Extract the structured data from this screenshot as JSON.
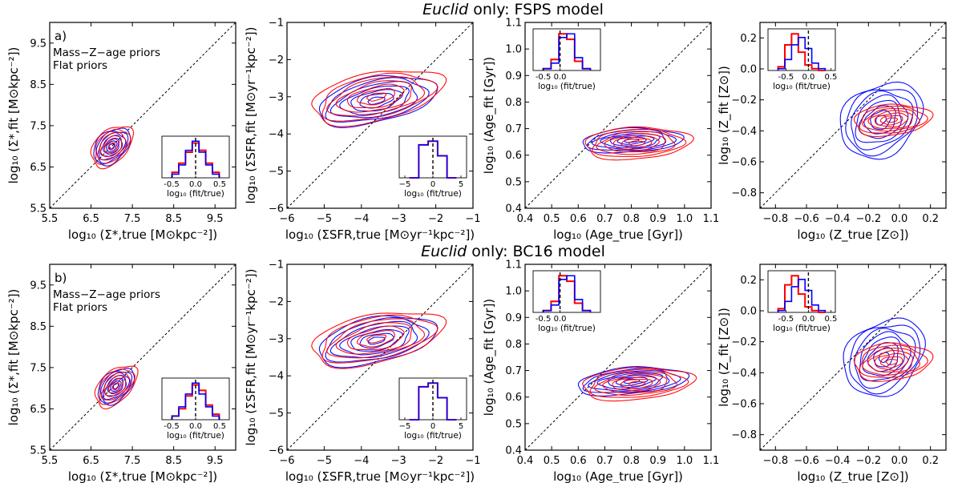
{
  "figure": {
    "row_titles": [
      {
        "italic": "Euclid",
        "rest": " only: FSPS model"
      },
      {
        "italic": "Euclid",
        "rest": " only: BC16 model"
      }
    ],
    "panel_tags": [
      "a)",
      "b)"
    ],
    "legend": [
      {
        "label": "Mass−Z−age priors",
        "color": "#0000ff"
      },
      {
        "label": "Flat priors",
        "color": "#ff0000"
      }
    ],
    "colors": {
      "mass_z_age": "#0000ff",
      "flat": "#ff0000"
    },
    "inset_xlabel": "log₁₀ (fit/true)"
  },
  "chart_data": [
    {
      "type": "contour",
      "row": 0,
      "col": 0,
      "xlabel": "log₁₀ (Σ*,true [M⊙kpc⁻²])",
      "ylabel": "log₁₀ (Σ*,fit [M⊙kpc⁻²])",
      "xlim": [
        5.5,
        10.0
      ],
      "ylim": [
        5.5,
        10.0
      ],
      "xticks": [
        "5.5",
        "6.5",
        "7.5",
        "8.5",
        "9.5"
      ],
      "xtick_values": [
        5.5,
        6.5,
        7.5,
        8.5,
        9.5
      ],
      "yticks": [
        "5.5",
        "6.5",
        "7.5",
        "8.5",
        "9.5"
      ],
      "ytick_values": [
        5.5,
        6.5,
        7.5,
        8.5,
        9.5
      ],
      "one_to_one_line": true,
      "series": [
        {
          "prior": "mass_z_age",
          "center": [
            7.0,
            7.0
          ],
          "spread": [
            0.55,
            0.35
          ],
          "angle_deg": 45,
          "levels": 7,
          "extent": [
            6.1,
            8.6
          ]
        },
        {
          "prior": "flat",
          "center": [
            7.0,
            7.0
          ],
          "spread": [
            0.6,
            0.38
          ],
          "angle_deg": 45,
          "levels": 6,
          "extent": [
            6.0,
            8.8
          ]
        }
      ],
      "inset": {
        "position": "bottom-right",
        "xlim": [
          -0.7,
          0.7
        ],
        "xticks": [
          "-0.5",
          "0.0",
          "0.5"
        ],
        "xtick_values": [
          -0.5,
          0,
          0.5
        ],
        "hist_mass_z_age": [
          0.1,
          0.35,
          0.75,
          1.0,
          0.7,
          0.35,
          0.1
        ],
        "hist_flat": [
          0.15,
          0.4,
          0.7,
          0.95,
          0.75,
          0.4,
          0.15
        ]
      }
    },
    {
      "type": "contour",
      "row": 0,
      "col": 1,
      "xlabel": "log₁₀ (ΣSFR,true [M⊙yr⁻¹kpc⁻²])",
      "ylabel": "log₁₀ (ΣSFR,fit [M⊙yr⁻¹kpc⁻²])",
      "xlim": [
        -6,
        -1
      ],
      "ylim": [
        -6,
        -1
      ],
      "xticks": [
        "−6",
        "−5",
        "−4",
        "−3",
        "−2",
        "−1"
      ],
      "xtick_values": [
        -6,
        -5,
        -4,
        -3,
        -2,
        -1
      ],
      "yticks": [
        "−6",
        "−5",
        "−4",
        "−3",
        "−2",
        "−1"
      ],
      "ytick_values": [
        -6,
        -5,
        -4,
        -3,
        -2,
        -1
      ],
      "one_to_one_line": true,
      "series": [
        {
          "prior": "mass_z_age",
          "center": [
            -3.6,
            -3.1
          ],
          "spread": [
            1.7,
            0.6
          ],
          "angle_deg": 12,
          "levels": 7
        },
        {
          "prior": "flat",
          "center": [
            -3.6,
            -3.0
          ],
          "spread": [
            1.8,
            0.65
          ],
          "angle_deg": 12,
          "levels": 7
        }
      ],
      "inset": {
        "position": "bottom-right",
        "xlim": [
          -6,
          6
        ],
        "xticks": [
          "−5",
          "0",
          "5"
        ],
        "xtick_values": [
          -5,
          0,
          5
        ],
        "hist_mass_z_age": [
          0,
          0.9,
          1.0,
          0.6,
          0
        ],
        "hist_flat": [
          0,
          0.9,
          1.0,
          0.6,
          0
        ]
      }
    },
    {
      "type": "contour",
      "row": 0,
      "col": 2,
      "xlabel": "log₁₀ (Age_true [Gyr])",
      "ylabel": "log₁₀ (Age_fit [Gyr])",
      "xlim": [
        0.4,
        1.1
      ],
      "ylim": [
        0.4,
        1.1
      ],
      "xticks": [
        "0.4",
        "0.5",
        "0.6",
        "0.7",
        "0.8",
        "0.9",
        "1.0",
        "1.1"
      ],
      "xtick_values": [
        0.4,
        0.5,
        0.6,
        0.7,
        0.8,
        0.9,
        1.0,
        1.1
      ],
      "yticks": [
        "0.4",
        "0.5",
        "0.6",
        "0.7",
        "0.8",
        "0.9",
        "1.0",
        "1.1"
      ],
      "ytick_values": [
        0.4,
        0.5,
        0.6,
        0.7,
        0.8,
        0.9,
        1.0,
        1.1
      ],
      "one_to_one_line": true,
      "series": [
        {
          "prior": "mass_z_age",
          "center": [
            0.8,
            0.655
          ],
          "spread": [
            0.2,
            0.045
          ],
          "angle_deg": 3,
          "levels": 7
        },
        {
          "prior": "flat",
          "center": [
            0.82,
            0.645
          ],
          "spread": [
            0.2,
            0.06
          ],
          "angle_deg": 3,
          "levels": 7
        }
      ],
      "inset": {
        "position": "top-left",
        "xlim": [
          -0.8,
          1.2
        ],
        "xticks": [
          "-0.5",
          "0.0"
        ],
        "xtick_values": [
          -0.5,
          0.0
        ],
        "hist_mass_z_age": [
          0.05,
          0.2,
          0.9,
          1.0,
          0.35,
          0.05
        ],
        "hist_flat": [
          0.05,
          0.3,
          1.0,
          0.85,
          0.25,
          0.05
        ]
      }
    },
    {
      "type": "contour",
      "row": 0,
      "col": 3,
      "xlabel": "log₁₀ (Z_true [Z⊙])",
      "ylabel": "log₁₀ (Z_fit [Z⊙])",
      "xlim": [
        -0.9,
        0.3
      ],
      "ylim": [
        -0.9,
        0.3
      ],
      "xticks": [
        "−0.8",
        "−0.6",
        "−0.4",
        "−0.2",
        "0.0",
        "0.2"
      ],
      "xtick_values": [
        -0.8,
        -0.6,
        -0.4,
        -0.2,
        0.0,
        0.2
      ],
      "yticks": [
        "−0.8",
        "−0.6",
        "−0.4",
        "−0.2",
        "0.0",
        "0.2"
      ],
      "ytick_values": [
        -0.8,
        -0.6,
        -0.4,
        -0.2,
        0.0,
        0.2
      ],
      "one_to_one_line": true,
      "series": [
        {
          "prior": "mass_z_age",
          "center": [
            -0.12,
            -0.33
          ],
          "spread": [
            0.3,
            0.22
          ],
          "angle_deg": 35,
          "levels": 8
        },
        {
          "prior": "flat",
          "center": [
            -0.05,
            -0.33
          ],
          "spread": [
            0.25,
            0.1
          ],
          "angle_deg": 5,
          "levels": 7
        }
      ],
      "inset": {
        "position": "top-left",
        "xlim": [
          -0.9,
          0.6
        ],
        "xticks": [
          "-0.5",
          "0.0",
          "0.5"
        ],
        "xtick_values": [
          -0.5,
          0.0,
          0.5
        ],
        "hist_mass_z_age": [
          0.05,
          0.3,
          0.7,
          0.9,
          0.6,
          0.2,
          0.05
        ],
        "hist_flat": [
          0.1,
          0.7,
          1.0,
          0.5,
          0.15,
          0.05,
          0
        ]
      }
    },
    {
      "type": "contour",
      "row": 1,
      "col": 0,
      "xlabel": "log₁₀ (Σ*,true [M⊙kpc⁻²])",
      "ylabel": "log₁₀ (Σ*,fit [M⊙kpc⁻²])",
      "xlim": [
        5.5,
        10.0
      ],
      "ylim": [
        5.5,
        10.0
      ],
      "xticks": [
        "5.5",
        "6.5",
        "7.5",
        "8.5",
        "9.5"
      ],
      "xtick_values": [
        5.5,
        6.5,
        7.5,
        8.5,
        9.5
      ],
      "yticks": [
        "5.5",
        "6.5",
        "7.5",
        "8.5",
        "9.5"
      ],
      "ytick_values": [
        5.5,
        6.5,
        7.5,
        8.5,
        9.5
      ],
      "one_to_one_line": true,
      "series": [
        {
          "prior": "mass_z_age",
          "center": [
            7.1,
            7.05
          ],
          "spread": [
            0.55,
            0.33
          ],
          "angle_deg": 45,
          "levels": 7
        },
        {
          "prior": "flat",
          "center": [
            7.1,
            7.05
          ],
          "spread": [
            0.62,
            0.36
          ],
          "angle_deg": 45,
          "levels": 6
        }
      ],
      "inset": {
        "position": "bottom-right",
        "xlim": [
          -0.7,
          0.7
        ],
        "xticks": [
          "-0.5",
          "0.0",
          "0.5"
        ],
        "xtick_values": [
          -0.5,
          0,
          0.5
        ],
        "hist_mass_z_age": [
          0.1,
          0.35,
          0.7,
          1.0,
          0.7,
          0.35,
          0.1
        ],
        "hist_flat": [
          0.1,
          0.3,
          0.65,
          0.95,
          0.8,
          0.4,
          0.15
        ]
      }
    },
    {
      "type": "contour",
      "row": 1,
      "col": 1,
      "xlabel": "log₁₀ (ΣSFR,true [M⊙yr⁻¹kpc⁻²])",
      "ylabel": "log₁₀ (ΣSFR,fit [M⊙yr⁻¹kpc⁻²])",
      "xlim": [
        -6,
        -1
      ],
      "ylim": [
        -6,
        -1
      ],
      "xticks": [
        "−6",
        "−5",
        "−4",
        "−3",
        "−2",
        "−1"
      ],
      "xtick_values": [
        -6,
        -5,
        -4,
        -3,
        -2,
        -1
      ],
      "yticks": [
        "−6",
        "−5",
        "−4",
        "−3",
        "−2",
        "−1"
      ],
      "ytick_values": [
        -6,
        -5,
        -4,
        -3,
        -2,
        -1
      ],
      "one_to_one_line": true,
      "series": [
        {
          "prior": "mass_z_age",
          "center": [
            -3.6,
            -3.05
          ],
          "spread": [
            1.7,
            0.6
          ],
          "angle_deg": 12,
          "levels": 7
        },
        {
          "prior": "flat",
          "center": [
            -3.6,
            -3.0
          ],
          "spread": [
            1.8,
            0.65
          ],
          "angle_deg": 12,
          "levels": 7
        }
      ],
      "inset": {
        "position": "bottom-right",
        "xlim": [
          -6,
          6
        ],
        "xticks": [
          "−5",
          "0",
          "5"
        ],
        "xtick_values": [
          -5,
          0,
          5
        ],
        "hist_mass_z_age": [
          0,
          0.9,
          1.0,
          0.6,
          0
        ],
        "hist_flat": [
          0,
          0.9,
          1.0,
          0.6,
          0
        ]
      }
    },
    {
      "type": "contour",
      "row": 1,
      "col": 2,
      "xlabel": "log₁₀ (Age_true [Gyr])",
      "ylabel": "log₁₀ (Age_fit [Gyr])",
      "xlim": [
        0.4,
        1.1
      ],
      "ylim": [
        0.4,
        1.1
      ],
      "xticks": [
        "0.4",
        "0.5",
        "0.6",
        "0.7",
        "0.8",
        "0.9",
        "1.0",
        "1.1"
      ],
      "xtick_values": [
        0.4,
        0.5,
        0.6,
        0.7,
        0.8,
        0.9,
        1.0,
        1.1
      ],
      "yticks": [
        "0.4",
        "0.5",
        "0.6",
        "0.7",
        "0.8",
        "0.9",
        "1.0",
        "1.1"
      ],
      "ytick_values": [
        0.4,
        0.5,
        0.6,
        0.7,
        0.8,
        0.9,
        1.0,
        1.1
      ],
      "one_to_one_line": true,
      "series": [
        {
          "prior": "mass_z_age",
          "center": [
            0.8,
            0.66
          ],
          "spread": [
            0.22,
            0.05
          ],
          "angle_deg": 5,
          "levels": 7
        },
        {
          "prior": "flat",
          "center": [
            0.82,
            0.65
          ],
          "spread": [
            0.21,
            0.06
          ],
          "angle_deg": 4,
          "levels": 7
        }
      ],
      "inset": {
        "position": "top-left",
        "xlim": [
          -0.8,
          1.2
        ],
        "xticks": [
          "-0.5",
          "0.0"
        ],
        "xtick_values": [
          -0.5,
          0.0
        ],
        "hist_mass_z_age": [
          0.05,
          0.2,
          0.9,
          1.0,
          0.35,
          0.05
        ],
        "hist_flat": [
          0.05,
          0.3,
          1.0,
          0.85,
          0.25,
          0.05
        ]
      }
    },
    {
      "type": "contour",
      "row": 1,
      "col": 3,
      "xlabel": "log₁₀ (Z_true [Z⊙])",
      "ylabel": "log₁₀ (Z_fit [Z⊙])",
      "xlim": [
        -0.9,
        0.3
      ],
      "ylim": [
        -0.9,
        0.3
      ],
      "xticks": [
        "−0.8",
        "−0.6",
        "−0.4",
        "−0.2",
        "0.0",
        "0.2"
      ],
      "xtick_values": [
        -0.8,
        -0.6,
        -0.4,
        -0.2,
        0.0,
        0.2
      ],
      "yticks": [
        "−0.8",
        "−0.6",
        "−0.4",
        "−0.2",
        "0.0",
        "0.2"
      ],
      "ytick_values": [
        -0.8,
        -0.6,
        -0.4,
        -0.2,
        0.0,
        0.2
      ],
      "one_to_one_line": true,
      "series": [
        {
          "prior": "mass_z_age",
          "center": [
            -0.1,
            -0.3
          ],
          "spread": [
            0.3,
            0.22
          ],
          "angle_deg": 40,
          "levels": 8
        },
        {
          "prior": "flat",
          "center": [
            -0.05,
            -0.33
          ],
          "spread": [
            0.25,
            0.12
          ],
          "angle_deg": 5,
          "levels": 7
        }
      ],
      "inset": {
        "position": "top-left",
        "xlim": [
          -0.9,
          0.6
        ],
        "xticks": [
          "-0.5",
          "0.0",
          "0.5"
        ],
        "xtick_values": [
          -0.5,
          0.0,
          0.5
        ],
        "hist_mass_z_age": [
          0.05,
          0.3,
          0.7,
          0.9,
          0.6,
          0.2,
          0.05
        ],
        "hist_flat": [
          0.1,
          0.75,
          1.0,
          0.5,
          0.15,
          0.05,
          0
        ]
      }
    }
  ]
}
